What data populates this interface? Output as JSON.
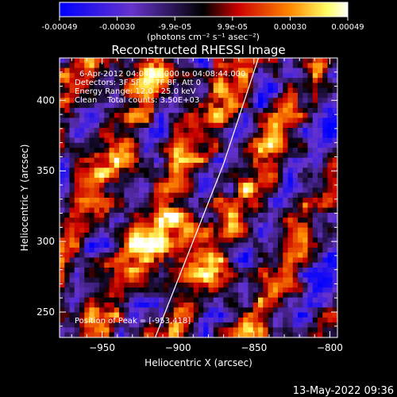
{
  "colorbar": {
    "ticks": [
      "-0.00049",
      "-0.00030",
      "-9.9e-05",
      "9.9e-05",
      "0.00030",
      "0.00049"
    ],
    "units": "(photons cm⁻² s⁻¹ asec⁻²)",
    "colors": [
      "#0000ff",
      "#6633cc",
      "#000000",
      "#cc0000",
      "#ff8800",
      "#ffff66",
      "#ffffff"
    ]
  },
  "chart_data": {
    "type": "heatmap",
    "title": "Reconstructed RHESSI Image",
    "xlabel": "Heliocentric X (arcsec)",
    "ylabel": "Heliocentric Y (arcsec)",
    "xlim": [
      -978,
      -795
    ],
    "ylim": [
      232,
      430
    ],
    "xticks": [
      -950,
      -900,
      -850,
      -800
    ],
    "yticks": [
      250,
      300,
      350,
      400
    ],
    "zlim": [
      -0.00049,
      0.00049
    ],
    "limb_line": [
      [
        -915,
        232
      ],
      [
        -870,
        355
      ],
      [
        -847,
        430
      ]
    ],
    "peak": [
      -953,
      418
    ],
    "info_lines": [
      "6-Apr-2012 04:04:48.000 to 04:08:44.000",
      "Detectors: 3F 5F 6F 7F 8F, Att 0",
      "Energy Range: 12.0 - 25.0 keV",
      "Clean    Total counts: 3.50E+03"
    ],
    "peak_label": "Position of Peak = [-953,418]"
  },
  "timestamp": "13-May-2022 09:36"
}
